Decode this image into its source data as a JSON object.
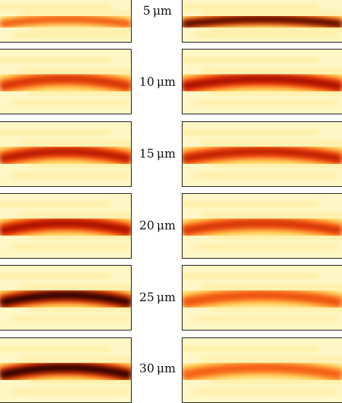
{
  "rows": [
    {
      "label": "5 μm",
      "left_intensity": 0.35,
      "right_intensity": 1.0
    },
    {
      "label": "10 μm",
      "left_intensity": 0.55,
      "right_intensity": 0.85
    },
    {
      "label": "15 μm",
      "left_intensity": 0.75,
      "right_intensity": 0.7
    },
    {
      "label": "20 μm",
      "left_intensity": 0.85,
      "right_intensity": 0.55
    },
    {
      "label": "25 μm",
      "left_intensity": 1.0,
      "right_intensity": 0.35
    },
    {
      "label": "30 μm",
      "left_intensity": 1.0,
      "right_intensity": 0.25
    }
  ],
  "colors": {
    "background": "#fff7c6",
    "low": "#ffd54a",
    "mid": "#ff3a00",
    "high": "#8a0000",
    "peak": "#250000",
    "frame": "#111111"
  }
}
